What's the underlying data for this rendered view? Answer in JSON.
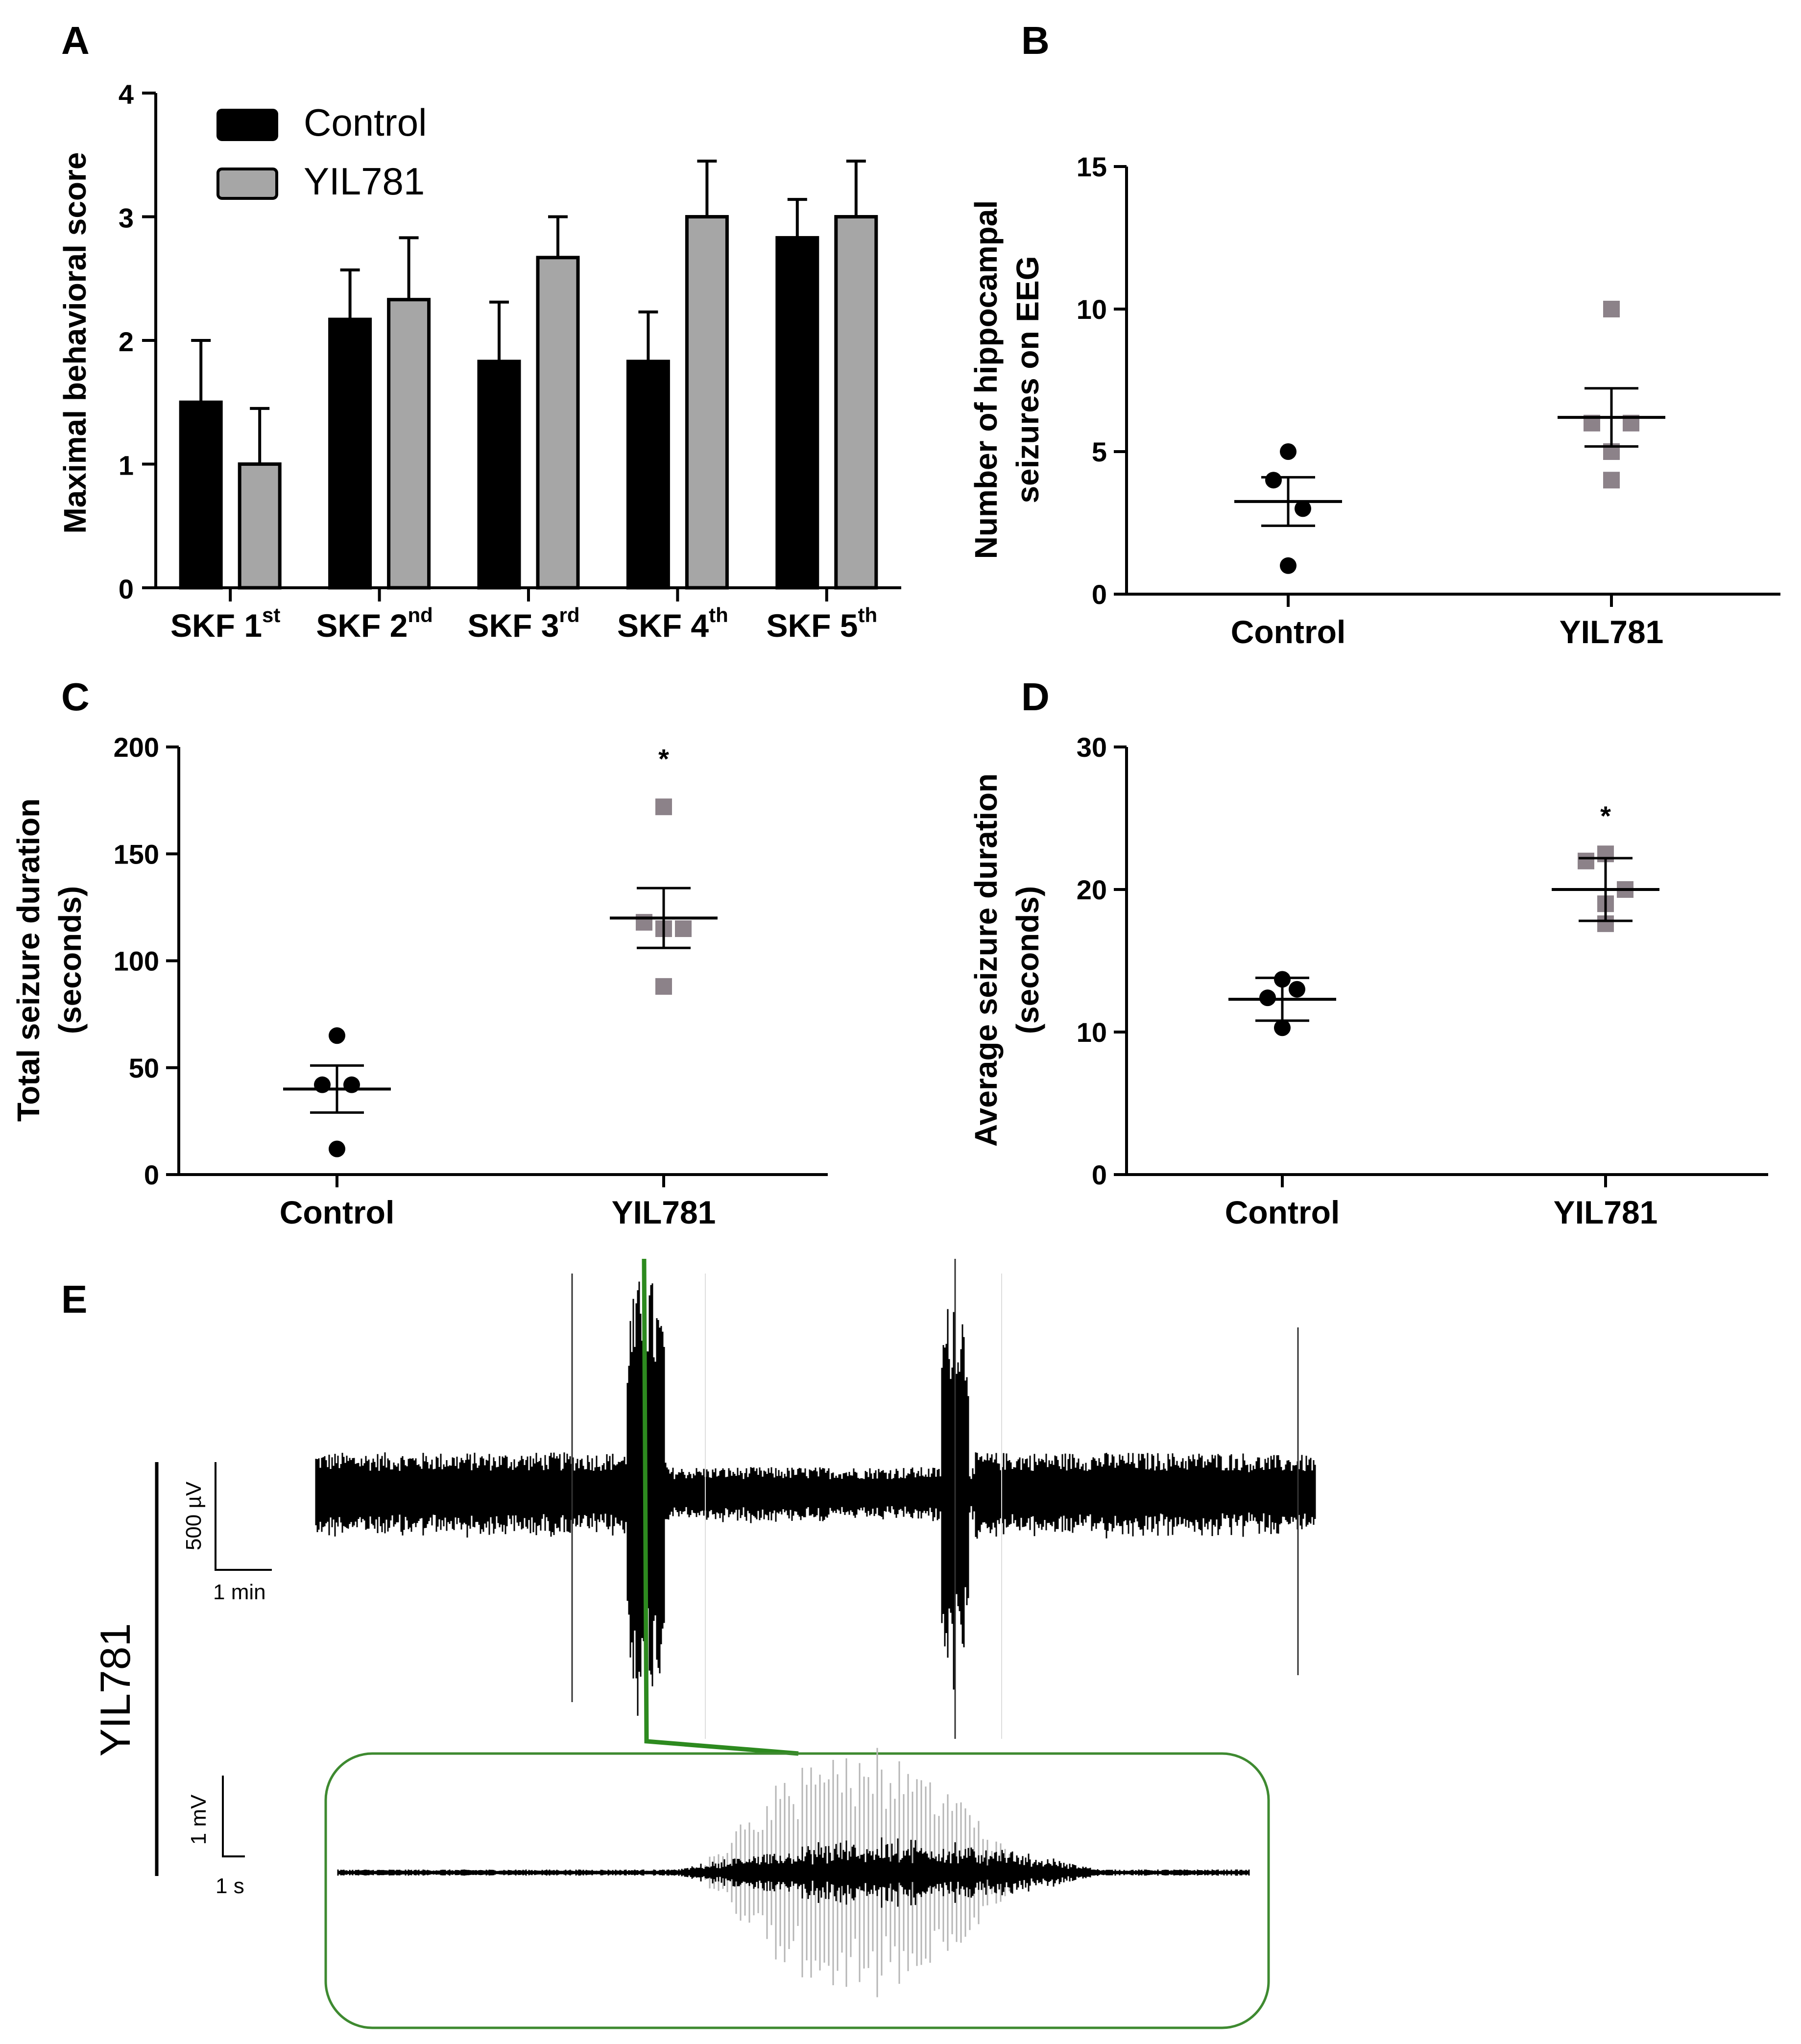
{
  "panels": {
    "A": {
      "letter": "A"
    },
    "B": {
      "letter": "B"
    },
    "C": {
      "letter": "C"
    },
    "D": {
      "letter": "D"
    },
    "E": {
      "letter": "E"
    }
  },
  "chart_data": [
    {
      "id": "A",
      "type": "bar",
      "title": "",
      "xlabel": "",
      "ylabel": "Maximal behavioral score",
      "ylim": [
        0,
        4
      ],
      "yticks": [
        0,
        1,
        2,
        3,
        4
      ],
      "categories": [
        {
          "base": "SKF 1",
          "sup": "st"
        },
        {
          "base": "SKF 2",
          "sup": "nd"
        },
        {
          "base": "SKF 3",
          "sup": "rd"
        },
        {
          "base": "SKF 4",
          "sup": "th"
        },
        {
          "base": "SKF 5",
          "sup": "th"
        }
      ],
      "series": [
        {
          "name": "Control",
          "color": "#000000",
          "values": [
            1.5,
            2.17,
            1.83,
            1.83,
            2.83
          ],
          "errors": [
            0.5,
            0.4,
            0.48,
            0.4,
            0.31
          ]
        },
        {
          "name": "YIL781",
          "color": "#a6a6a6",
          "values": [
            1.0,
            2.33,
            2.67,
            3.0,
            3.0
          ],
          "errors": [
            0.45,
            0.5,
            0.33,
            0.45,
            0.45
          ]
        }
      ],
      "legend": "top-left"
    },
    {
      "id": "B",
      "type": "scatter",
      "ylabel": "Number of hippocampal seizures on EEG",
      "ylabel_lines": [
        "Number of hippocampal",
        "seizures on EEG"
      ],
      "ylim": [
        0,
        15
      ],
      "yticks": [
        0,
        5,
        10,
        15
      ],
      "groups": [
        {
          "name": "Control",
          "marker": "circle",
          "color": "#000000",
          "points": [
            5,
            4,
            3,
            1
          ],
          "mean": 3.25,
          "sem": 0.85
        },
        {
          "name": "YIL781",
          "marker": "square",
          "color": "#8c8289",
          "points": [
            10,
            6,
            6,
            5,
            4
          ],
          "mean": 6.2,
          "sem": 1.02
        }
      ]
    },
    {
      "id": "C",
      "type": "scatter",
      "ylabel": "Total seizure duration (seconds)",
      "ylabel_lines": [
        "Total seizure duration",
        "(seconds)"
      ],
      "ylim": [
        0,
        200
      ],
      "yticks": [
        0,
        50,
        100,
        150,
        200
      ],
      "groups": [
        {
          "name": "Control",
          "marker": "circle",
          "color": "#000000",
          "points": [
            65,
            42,
            42,
            12
          ],
          "mean": 40,
          "sem": 11
        },
        {
          "name": "YIL781",
          "marker": "square",
          "color": "#8c8289",
          "points": [
            172,
            118,
            115,
            115,
            88
          ],
          "mean": 120,
          "sem": 14
        },
        {
          "name": "YIL781-significance",
          "annotation": "*",
          "y": 190
        }
      ]
    },
    {
      "id": "D",
      "type": "scatter",
      "ylabel": "Average seizure duration (seconds)",
      "ylabel_lines": [
        "Average seizure duration",
        "(seconds)"
      ],
      "ylim": [
        0,
        30
      ],
      "yticks": [
        0,
        10,
        20,
        30
      ],
      "groups": [
        {
          "name": "Control",
          "marker": "circle",
          "color": "#000000",
          "points": [
            13.7,
            12.4,
            13,
            10.3
          ],
          "mean": 12.3,
          "sem": 1.5
        },
        {
          "name": "YIL781",
          "marker": "square",
          "color": "#8c8289",
          "points": [
            22.5,
            22,
            20,
            19,
            17.6
          ],
          "mean": 20,
          "sem": 2.2
        },
        {
          "name": "YIL781-significance",
          "annotation": "*",
          "y": 24.5
        }
      ]
    }
  ],
  "panelE": {
    "trace_label": "YIL781",
    "upper_scale_voltage": "500 µV",
    "upper_scale_time": "1 min",
    "lower_scale_voltage": "1 mV",
    "lower_scale_time": "1 s",
    "zoom_color": "#2d8a1f",
    "trace_color": "#000000"
  }
}
